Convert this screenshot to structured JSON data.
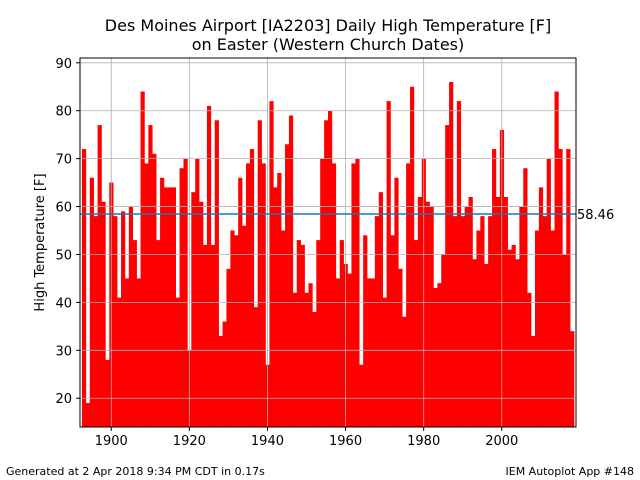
{
  "chart_data": {
    "type": "bar",
    "title_line1": "Des Moines Airport [IA2203] Daily High Temperature [F]",
    "title_line2": "on Easter (Western Church Dates)",
    "xlabel": "",
    "ylabel": "High Temperature [F]",
    "xlim": [
      1892,
      2019
    ],
    "ylim": [
      14,
      91
    ],
    "x_ticks": [
      1900,
      1920,
      1940,
      1960,
      1980,
      2000
    ],
    "y_ticks": [
      20,
      30,
      40,
      50,
      60,
      70,
      80,
      90
    ],
    "grid": true,
    "bar_color": "#ff0000",
    "mean_line_color": "#1f77b4",
    "mean_value": 58.46,
    "mean_label": "58.46",
    "years": [
      1893,
      1894,
      1895,
      1896,
      1897,
      1898,
      1899,
      1900,
      1901,
      1902,
      1903,
      1904,
      1905,
      1906,
      1907,
      1908,
      1909,
      1910,
      1911,
      1912,
      1913,
      1914,
      1915,
      1916,
      1917,
      1918,
      1919,
      1920,
      1921,
      1922,
      1923,
      1924,
      1925,
      1926,
      1927,
      1928,
      1929,
      1930,
      1931,
      1932,
      1933,
      1934,
      1935,
      1936,
      1937,
      1938,
      1939,
      1940,
      1941,
      1942,
      1943,
      1944,
      1945,
      1946,
      1947,
      1948,
      1949,
      1950,
      1951,
      1952,
      1953,
      1954,
      1955,
      1956,
      1957,
      1958,
      1959,
      1960,
      1961,
      1962,
      1963,
      1964,
      1965,
      1966,
      1967,
      1968,
      1969,
      1970,
      1971,
      1972,
      1973,
      1974,
      1975,
      1976,
      1977,
      1978,
      1979,
      1980,
      1981,
      1982,
      1983,
      1984,
      1985,
      1986,
      1987,
      1988,
      1989,
      1990,
      1991,
      1992,
      1993,
      1994,
      1995,
      1996,
      1997,
      1998,
      1999,
      2000,
      2001,
      2002,
      2003,
      2004,
      2005,
      2006,
      2007,
      2008,
      2009,
      2010,
      2011,
      2012,
      2013,
      2014,
      2015,
      2016,
      2017,
      2018
    ],
    "values": [
      72,
      19,
      66,
      58,
      77,
      61,
      28,
      65,
      58,
      41,
      59,
      45,
      60,
      53,
      45,
      84,
      69,
      77,
      71,
      53,
      66,
      64,
      64,
      64,
      41,
      68,
      70,
      30,
      63,
      70,
      61,
      52,
      81,
      52,
      78,
      33,
      36,
      47,
      55,
      54,
      66,
      56,
      69,
      72,
      39,
      78,
      69,
      27,
      82,
      64,
      67,
      55,
      73,
      79,
      42,
      53,
      52,
      42,
      44,
      38,
      53,
      70,
      78,
      80,
      69,
      45,
      53,
      48,
      46,
      69,
      70,
      27,
      54,
      45,
      45,
      58,
      63,
      41,
      82,
      54,
      66,
      47,
      37,
      69,
      85,
      53,
      62,
      70,
      61,
      60,
      43,
      44,
      50,
      77,
      86,
      58,
      82,
      58,
      60,
      62,
      49,
      55,
      58,
      48,
      58,
      72,
      62,
      76,
      62,
      51,
      52,
      49,
      60,
      68,
      42,
      33,
      55,
      64,
      58,
      70,
      55,
      84,
      72,
      50,
      72,
      34
    ]
  },
  "footer": {
    "left": "Generated at 2 Apr 2018 9:34 PM CDT in 0.17s",
    "right": "IEM Autoplot App #148"
  }
}
